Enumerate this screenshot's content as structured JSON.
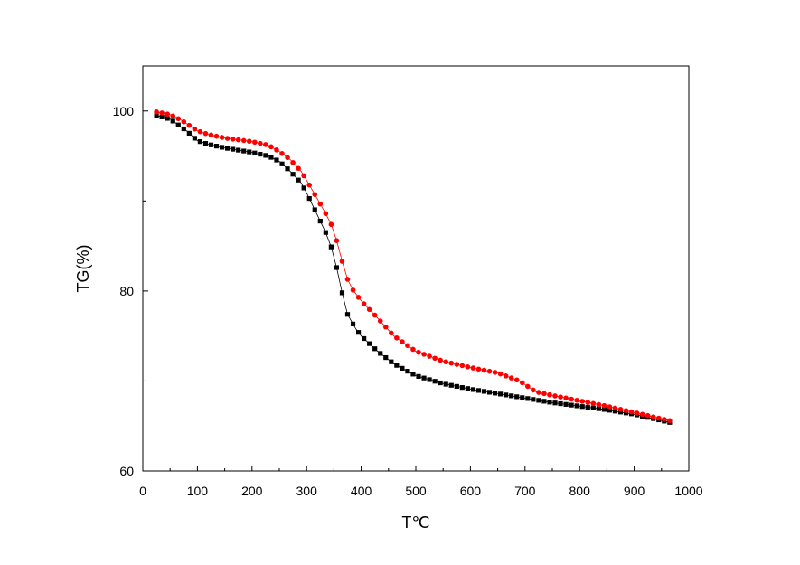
{
  "chart_data": {
    "type": "line",
    "xlabel": "T℃",
    "ylabel": "TG(%)",
    "xlim": [
      0,
      1000
    ],
    "ylim": [
      60,
      105
    ],
    "xticks": [
      0,
      100,
      200,
      300,
      400,
      500,
      600,
      700,
      800,
      900,
      1000
    ],
    "yticks": [
      60,
      80,
      100
    ],
    "grid": false,
    "legend": "none",
    "series": [
      {
        "marker": "square",
        "color": "#000000",
        "x": [
          25,
          50,
          80,
          100,
          120,
          150,
          200,
          230,
          250,
          270,
          290,
          300,
          320,
          335,
          345,
          355,
          365,
          375,
          390,
          400,
          430,
          460,
          500,
          550,
          600,
          650,
          700,
          750,
          800,
          850,
          900,
          965
        ],
        "y": [
          99.5,
          99.1,
          97.8,
          96.7,
          96.3,
          95.9,
          95.4,
          95.0,
          94.4,
          93.3,
          92.0,
          90.9,
          88.4,
          86.5,
          84.9,
          82.6,
          79.8,
          77.4,
          75.8,
          75.0,
          73.3,
          71.9,
          70.6,
          69.7,
          69.1,
          68.6,
          68.1,
          67.6,
          67.2,
          66.8,
          66.3,
          65.4
        ]
      },
      {
        "marker": "circle",
        "color": "#ff0000",
        "x": [
          25,
          50,
          70,
          100,
          120,
          150,
          200,
          230,
          250,
          270,
          290,
          300,
          320,
          335,
          345,
          355,
          365,
          375,
          385,
          400,
          430,
          460,
          500,
          550,
          600,
          650,
          690,
          720,
          750,
          800,
          850,
          900,
          965
        ],
        "y": [
          99.9,
          99.6,
          99.0,
          97.8,
          97.4,
          97.0,
          96.6,
          96.2,
          95.5,
          94.6,
          93.3,
          92.3,
          90.2,
          88.6,
          87.4,
          85.6,
          83.3,
          81.3,
          80.1,
          78.9,
          77.0,
          75.0,
          73.3,
          72.2,
          71.5,
          70.9,
          70.0,
          68.8,
          68.4,
          67.8,
          67.2,
          66.5,
          65.6
        ]
      }
    ]
  }
}
